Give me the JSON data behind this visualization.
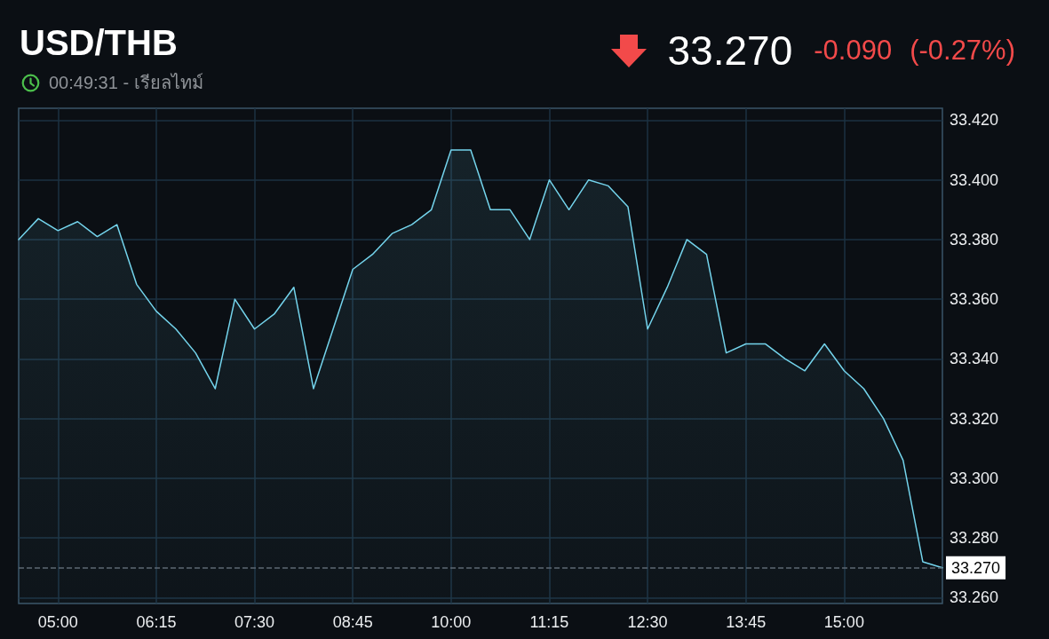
{
  "chart_data": {
    "type": "area",
    "title": "USD/THB",
    "subtitle": "00:49:31 - เรียลไทม์",
    "annotations": [
      "33.270",
      "-0.090",
      "(-0.27%)"
    ],
    "x": [
      4.5,
      4.75,
      5,
      5.25,
      5.5,
      5.75,
      6,
      6.25,
      6.5,
      6.75,
      7,
      7.25,
      7.5,
      7.75,
      8,
      8.25,
      8.5,
      8.75,
      9,
      9.25,
      9.5,
      9.75,
      10,
      10.25,
      10.5,
      10.75,
      11,
      11.25,
      11.5,
      11.75,
      12,
      12.25,
      12.5,
      12.75,
      13,
      13.25,
      13.5,
      13.75,
      14,
      14.25,
      14.5,
      14.75,
      15,
      15.25,
      15.5,
      15.75,
      16,
      16.25
    ],
    "series": [
      {
        "color": "#74d4ec",
        "values": [
          33.38,
          33.387,
          33.383,
          33.386,
          33.381,
          33.385,
          33.365,
          33.356,
          33.35,
          33.342,
          33.33,
          33.36,
          33.35,
          33.355,
          33.364,
          33.33,
          33.35,
          33.37,
          33.375,
          33.382,
          33.385,
          33.39,
          33.41,
          33.41,
          33.39,
          33.39,
          33.38,
          33.4,
          33.39,
          33.4,
          33.398,
          33.391,
          33.35,
          33.364,
          33.38,
          33.375,
          33.342,
          33.345,
          33.345,
          33.34,
          33.336,
          33.345,
          33.336,
          33.33,
          33.32,
          33.306,
          33.272,
          33.27
        ]
      }
    ],
    "xlim": [
      4.5,
      16.25
    ],
    "xticks": [
      {
        "value": 5,
        "label": "05:00"
      },
      {
        "value": 6.25,
        "label": "06:15"
      },
      {
        "value": 7.5,
        "label": "07:30"
      },
      {
        "value": 8.75,
        "label": "08:45"
      },
      {
        "value": 10,
        "label": "10:00"
      },
      {
        "value": 11.25,
        "label": "11:15"
      },
      {
        "value": 12.5,
        "label": "12:30"
      },
      {
        "value": 13.75,
        "label": "13:45"
      },
      {
        "value": 15,
        "label": "15:00"
      }
    ],
    "ylim": [
      33.258,
      33.424
    ],
    "yticks": [
      {
        "value": 33.26,
        "label": "33.260"
      },
      {
        "value": 33.28,
        "label": "33.280"
      },
      {
        "value": 33.3,
        "label": "33.300"
      },
      {
        "value": 33.32,
        "label": "33.320"
      },
      {
        "value": 33.34,
        "label": "33.340"
      },
      {
        "value": 33.36,
        "label": "33.360"
      },
      {
        "value": 33.38,
        "label": "33.380"
      },
      {
        "value": 33.4,
        "label": "33.400"
      },
      {
        "value": 33.42,
        "label": "33.420"
      }
    ],
    "ref_lines": [
      {
        "axis": "y",
        "value": 33.27,
        "label": "33.270",
        "color": "#5d6873",
        "line_style": "dashed"
      }
    ],
    "grid": true,
    "marker": "none",
    "line_style": "solid"
  }
}
